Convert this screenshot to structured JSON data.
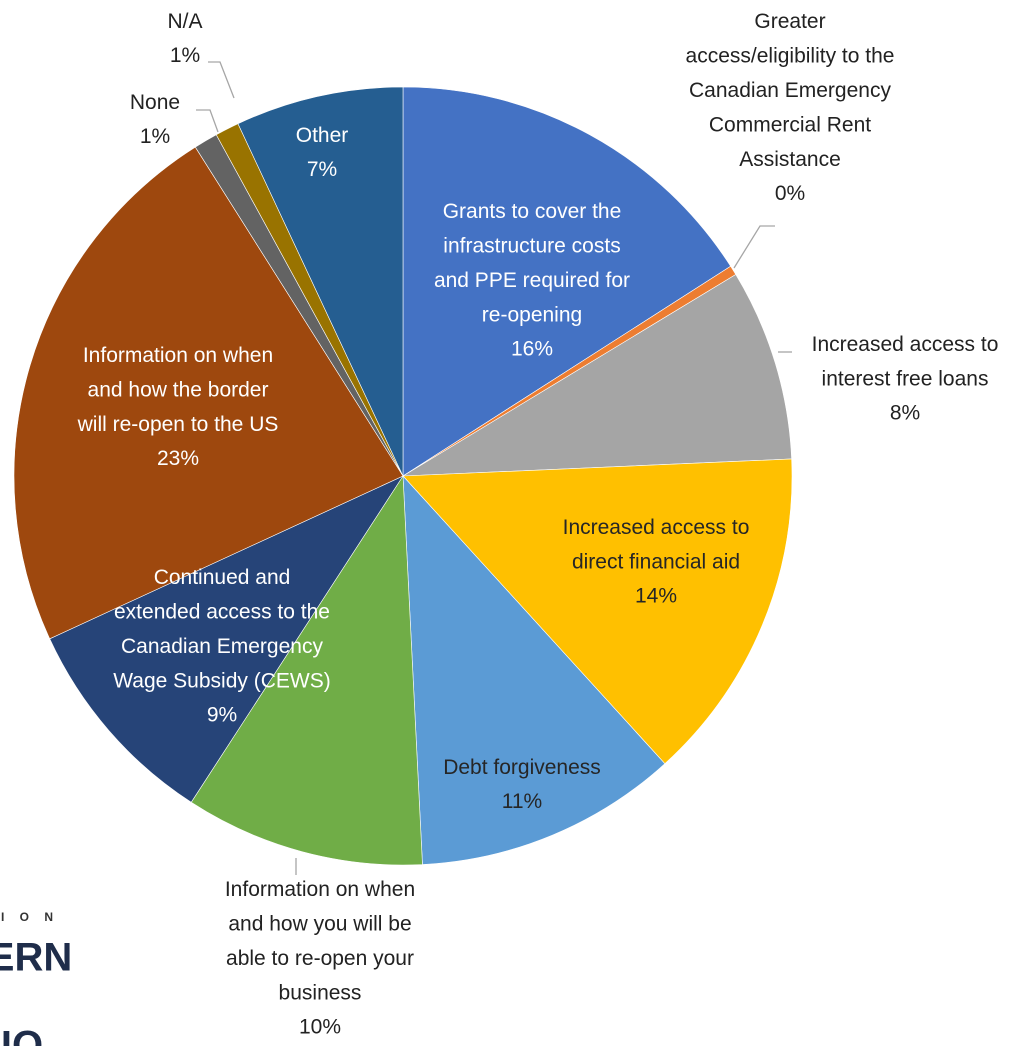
{
  "chart_data": {
    "type": "pie",
    "categories": [
      "Grants to cover the infrastructure costs and PPE required for re-opening",
      "Greater access/eligibility to the Canadian Emergency Commercial Rent Assistance",
      "Increased access to interest free loans",
      "Increased access to direct financial aid",
      "Debt forgiveness",
      "Information on when and how you will be able to re-open your business",
      "Continued and extended access to the Canadian Emergency Wage Subsidy (CEWS)",
      "Information on when and how the border will re-open to the US",
      "None",
      "N/A",
      "Other"
    ],
    "values": [
      16,
      0.4,
      8,
      14,
      11,
      10,
      9,
      23,
      1,
      1,
      7
    ],
    "value_labels": [
      "16%",
      "0%",
      "8%",
      "14%",
      "11%",
      "10%",
      "9%",
      "23%",
      "1%",
      "1%",
      "7%"
    ],
    "colors": [
      "#4472c4",
      "#ed7d31",
      "#a5a5a5",
      "#ffc000",
      "#5b9bd5",
      "#70ad47",
      "#264478",
      "#9e480e",
      "#636363",
      "#997300",
      "#255e91"
    ]
  },
  "logo": {
    "lines": [
      "I O N",
      "ERN",
      "IO"
    ]
  }
}
